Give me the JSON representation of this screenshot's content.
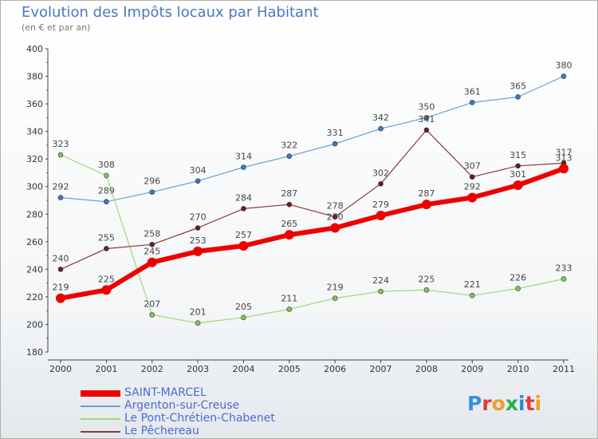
{
  "title": "Evolution des Impôts locaux par Habitant",
  "subtitle": "(en € et par an)",
  "logo": {
    "text": "Proxiti",
    "colors": [
      "#3a8fd8",
      "#e33a3a",
      "#f0a020",
      "#2ab04a",
      "#2a8ad8",
      "#e33a3a",
      "#f0a020"
    ]
  },
  "chart_data": {
    "type": "line",
    "x": [
      "2000",
      "2001",
      "2002",
      "2003",
      "2004",
      "2005",
      "2006",
      "2007",
      "2008",
      "2009",
      "2010",
      "2011"
    ],
    "ylim": [
      180,
      400
    ],
    "yticks": [
      "180",
      "200",
      "220",
      "240",
      "260",
      "280",
      "300",
      "320",
      "340",
      "360",
      "380",
      "400"
    ],
    "grid": false,
    "legend_position": "bottom-left",
    "series": [
      {
        "name": "Argenton-sur-Creuse",
        "color": "#6a9fd4",
        "marker": "#3a7ac8",
        "width": 1.2,
        "values": [
          292,
          289,
          296,
          304,
          314,
          322,
          331,
          342,
          350,
          361,
          365,
          380
        ]
      },
      {
        "name": "Le Pont-Chrétien-Chabenet",
        "color": "#9ed878",
        "marker": "#7cc850",
        "width": 1.2,
        "values": [
          323,
          308,
          207,
          201,
          205,
          211,
          219,
          224,
          225,
          221,
          226,
          233
        ]
      },
      {
        "name": "Le Pêchereau",
        "color": "#8b3a3a",
        "marker": "#6e1c1c",
        "width": 1.2,
        "values": [
          240,
          255,
          258,
          270,
          284,
          287,
          278,
          302,
          341,
          307,
          315,
          317
        ]
      },
      {
        "name": "SAINT-MARCEL",
        "color": "#ee0000",
        "marker": "#ee0000",
        "width": 6,
        "values": [
          219,
          225,
          245,
          253,
          257,
          265,
          270,
          279,
          287,
          292,
          301,
          313
        ]
      }
    ],
    "legend_order": [
      "SAINT-MARCEL",
      "Argenton-sur-Creuse",
      "Le Pont-Chrétien-Chabenet",
      "Le Pêchereau"
    ]
  }
}
